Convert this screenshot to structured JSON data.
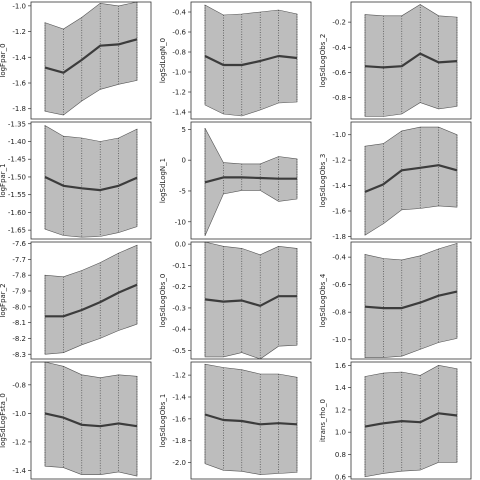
{
  "chart_data": [
    {
      "type": "area",
      "ylabel": "logFpar_0",
      "ylim": [
        -1.88,
        -0.97
      ],
      "yticks": [
        -1.0,
        -1.2,
        -1.4,
        -1.6,
        -1.8
      ],
      "x": [
        1,
        2,
        3,
        4,
        5,
        6
      ],
      "mean": [
        -1.48,
        -1.52,
        -1.42,
        -1.31,
        -1.3,
        -1.26
      ],
      "lower": [
        -1.82,
        -1.85,
        -1.74,
        -1.65,
        -1.61,
        -1.58
      ],
      "upper": [
        -1.13,
        -1.18,
        -1.09,
        -0.98,
        -1.0,
        -0.97
      ]
    },
    {
      "type": "area",
      "ylabel": "logSdLogN_0",
      "ylim": [
        -1.47,
        -0.3
      ],
      "yticks": [
        -0.4,
        -0.6,
        -0.8,
        -1.0,
        -1.2,
        -1.4
      ],
      "x": [
        1,
        2,
        3,
        4,
        5,
        6
      ],
      "mean": [
        -0.84,
        -0.93,
        -0.93,
        -0.89,
        -0.84,
        -0.86
      ],
      "lower": [
        -1.33,
        -1.42,
        -1.44,
        -1.38,
        -1.31,
        -1.3
      ],
      "upper": [
        -0.33,
        -0.43,
        -0.42,
        -0.4,
        -0.38,
        -0.42
      ]
    },
    {
      "type": "area",
      "ylabel": "logSdLogObs_2",
      "ylim": [
        -0.97,
        -0.04
      ],
      "yticks": [
        -0.2,
        -0.4,
        -0.6,
        -0.8
      ],
      "x": [
        1,
        2,
        3,
        4,
        5,
        6
      ],
      "mean": [
        -0.55,
        -0.56,
        -0.55,
        -0.45,
        -0.52,
        -0.51
      ],
      "lower": [
        -0.95,
        -0.95,
        -0.93,
        -0.84,
        -0.89,
        -0.87
      ],
      "upper": [
        -0.14,
        -0.15,
        -0.15,
        -0.06,
        -0.15,
        -0.16
      ]
    },
    {
      "type": "area",
      "ylabel": "logFpar_1",
      "ylim": [
        -1.675,
        -1.345
      ],
      "yticks": [
        -1.35,
        -1.4,
        -1.45,
        -1.5,
        -1.55,
        -1.6,
        -1.65
      ],
      "x": [
        1,
        2,
        3,
        4,
        5,
        6
      ],
      "mean": [
        -1.5,
        -1.525,
        -1.532,
        -1.537,
        -1.525,
        -1.502
      ],
      "lower": [
        -1.647,
        -1.665,
        -1.67,
        -1.668,
        -1.657,
        -1.64
      ],
      "upper": [
        -1.355,
        -1.385,
        -1.39,
        -1.4,
        -1.39,
        -1.365
      ]
    },
    {
      "type": "area",
      "ylabel": "logSdLogN_1",
      "ylim": [
        -12.8,
        6.2
      ],
      "yticks": [
        5,
        0,
        -5,
        -10
      ],
      "x": [
        1,
        2,
        3,
        4,
        5,
        6
      ],
      "mean": [
        -3.6,
        -2.8,
        -2.8,
        -2.9,
        -3.0,
        -3.0
      ],
      "lower": [
        -12.3,
        -5.5,
        -4.9,
        -4.9,
        -6.7,
        -6.3
      ],
      "upper": [
        5.2,
        -0.4,
        -0.6,
        -0.6,
        0.6,
        0.2
      ]
    },
    {
      "type": "area",
      "ylabel": "logSdLogObs_3",
      "ylim": [
        -1.82,
        -0.9
      ],
      "yticks": [
        -1.0,
        -1.2,
        -1.4,
        -1.6,
        -1.8
      ],
      "x": [
        1,
        2,
        3,
        4,
        5,
        6
      ],
      "mean": [
        -1.45,
        -1.39,
        -1.28,
        -1.26,
        -1.24,
        -1.28
      ],
      "lower": [
        -1.79,
        -1.7,
        -1.59,
        -1.58,
        -1.56,
        -1.57
      ],
      "upper": [
        -1.09,
        -1.07,
        -0.97,
        -0.94,
        -0.94,
        -1.0
      ]
    },
    {
      "type": "area",
      "ylabel": "logFpar_2",
      "ylim": [
        -8.33,
        -7.59
      ],
      "yticks": [
        -7.6,
        -7.7,
        -7.8,
        -7.9,
        -8.0,
        -8.1,
        -8.2,
        -8.3
      ],
      "x": [
        1,
        2,
        3,
        4,
        5,
        6
      ],
      "mean": [
        -8.06,
        -8.06,
        -8.02,
        -7.97,
        -7.91,
        -7.86
      ],
      "lower": [
        -8.3,
        -8.29,
        -8.24,
        -8.2,
        -8.15,
        -8.11
      ],
      "upper": [
        -7.8,
        -7.81,
        -7.77,
        -7.72,
        -7.66,
        -7.61
      ]
    },
    {
      "type": "area",
      "ylabel": "logSdLogObs_0",
      "ylim": [
        -0.54,
        0.01
      ],
      "yticks": [
        0.0,
        -0.1,
        -0.2,
        -0.3,
        -0.4,
        -0.5
      ],
      "x": [
        1,
        2,
        3,
        4,
        5,
        6
      ],
      "mean": [
        -0.26,
        -0.27,
        -0.265,
        -0.29,
        -0.245,
        -0.245
      ],
      "lower": [
        -0.53,
        -0.53,
        -0.51,
        -0.54,
        -0.48,
        -0.475
      ],
      "upper": [
        0.01,
        -0.01,
        -0.02,
        -0.05,
        -0.01,
        -0.02
      ]
    },
    {
      "type": "area",
      "ylabel": "logSdLogObs_4",
      "ylim": [
        -1.14,
        -0.29
      ],
      "yticks": [
        -0.4,
        -0.6,
        -0.8,
        -1.0
      ],
      "x": [
        1,
        2,
        3,
        4,
        5,
        6
      ],
      "mean": [
        -0.76,
        -0.77,
        -0.77,
        -0.73,
        -0.68,
        -0.65
      ],
      "lower": [
        -1.13,
        -1.13,
        -1.12,
        -1.07,
        -1.02,
        -0.99
      ],
      "upper": [
        -0.38,
        -0.41,
        -0.42,
        -0.39,
        -0.34,
        -0.3
      ]
    },
    {
      "type": "area",
      "ylabel": "logSdLogFsta_0",
      "ylim": [
        -1.46,
        -0.64
      ],
      "yticks": [
        -0.8,
        -1.0,
        -1.2,
        -1.4
      ],
      "x": [
        1,
        2,
        3,
        4,
        5,
        6
      ],
      "mean": [
        -1.0,
        -1.03,
        -1.08,
        -1.09,
        -1.07,
        -1.09
      ],
      "lower": [
        -1.37,
        -1.38,
        -1.43,
        -1.43,
        -1.41,
        -1.44
      ],
      "upper": [
        -0.64,
        -0.67,
        -0.73,
        -0.75,
        -0.73,
        -0.74
      ]
    },
    {
      "type": "area",
      "ylabel": "logSdLogObs_1",
      "ylim": [
        -2.15,
        -1.08
      ],
      "yticks": [
        -1.2,
        -1.4,
        -1.6,
        -1.8,
        -2.0
      ],
      "x": [
        1,
        2,
        3,
        4,
        5,
        6
      ],
      "mean": [
        -1.56,
        -1.61,
        -1.62,
        -1.65,
        -1.64,
        -1.65
      ],
      "lower": [
        -2.01,
        -2.07,
        -2.08,
        -2.11,
        -2.1,
        -2.09
      ],
      "upper": [
        -1.1,
        -1.13,
        -1.15,
        -1.19,
        -1.19,
        -1.22
      ]
    },
    {
      "type": "area",
      "ylabel": "itrans_rho_0",
      "ylim": [
        0.58,
        1.63
      ],
      "yticks": [
        1.6,
        1.4,
        1.2,
        1.0,
        0.8,
        0.6
      ],
      "x": [
        1,
        2,
        3,
        4,
        5,
        6
      ],
      "mean": [
        1.05,
        1.08,
        1.1,
        1.09,
        1.17,
        1.15
      ],
      "lower": [
        0.6,
        0.63,
        0.65,
        0.66,
        0.73,
        0.73
      ],
      "upper": [
        1.5,
        1.53,
        1.54,
        1.51,
        1.6,
        1.57
      ]
    }
  ]
}
